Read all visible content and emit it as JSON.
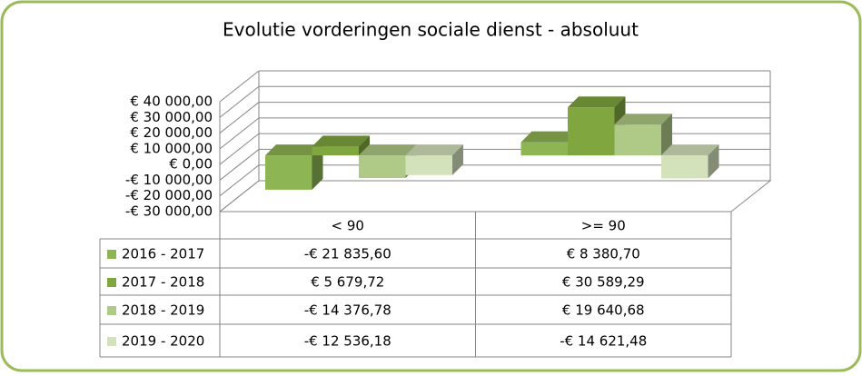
{
  "chart_data": {
    "type": "bar",
    "title": "Evolutie vorderingen sociale dienst - absoluut",
    "categories": [
      "< 90",
      ">= 90"
    ],
    "series": [
      {
        "name": "2016 - 2017",
        "color": "#8db553",
        "values": [
          -21835.6,
          8380.7
        ],
        "value_labels": [
          "-€ 21 835,60",
          "€ 8 380,70"
        ]
      },
      {
        "name": "2017 - 2018",
        "color": "#7fa63f",
        "values": [
          5679.72,
          30589.29
        ],
        "value_labels": [
          "€ 5 679,72",
          "€ 30 589,29"
        ]
      },
      {
        "name": "2018 - 2019",
        "color": "#afc986",
        "values": [
          -14376.78,
          19640.68
        ],
        "value_labels": [
          "-€ 14 376,78",
          "€ 19 640,68"
        ]
      },
      {
        "name": "2019 - 2020",
        "color": "#d4e2bc",
        "values": [
          -12536.18,
          -14621.48
        ],
        "value_labels": [
          "-€ 12 536,18",
          "-€ 14 621,48"
        ]
      }
    ],
    "ylim": [
      -30000,
      40000
    ],
    "yticks": [
      {
        "value": -30000,
        "label": "-€ 30 000,00"
      },
      {
        "value": -20000,
        "label": "-€ 20 000,00"
      },
      {
        "value": -10000,
        "label": "-€ 10 000,00"
      },
      {
        "value": 0,
        "label": "€  0,00"
      },
      {
        "value": 10000,
        "label": "€ 10 000,00"
      },
      {
        "value": 20000,
        "label": "€ 20 000,00"
      },
      {
        "value": 30000,
        "label": "€ 30 000,00"
      },
      {
        "value": 40000,
        "label": "€ 40 000,00"
      }
    ],
    "grid": true,
    "data_table": true
  }
}
